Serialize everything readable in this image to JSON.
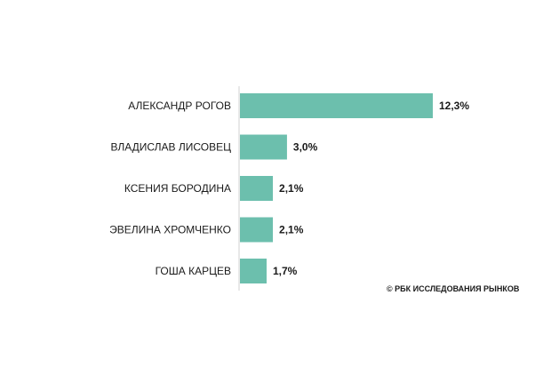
{
  "chart_data": {
    "type": "bar",
    "orientation": "horizontal",
    "categories": [
      "АЛЕКСАНДР РОГОВ",
      "ВЛАДИСЛАВ ЛИСОВЕЦ",
      "КСЕНИЯ БОРОДИНА",
      "ЭВЕЛИНА ХРОМЧЕНКО",
      "ГОША КАРЦЕВ"
    ],
    "values": [
      12.3,
      3.0,
      2.1,
      2.1,
      1.7
    ],
    "value_labels": [
      "12,3%",
      "3,0%",
      "2,1%",
      "2,1%",
      "1,7%"
    ],
    "title": "",
    "xlabel": "",
    "ylabel": "",
    "xlim": [
      0,
      12.3
    ],
    "grid": false,
    "bar_color": "#6cbfad"
  },
  "source": "© РБК ИССЛЕДОВАНИЯ РЫНКОВ"
}
